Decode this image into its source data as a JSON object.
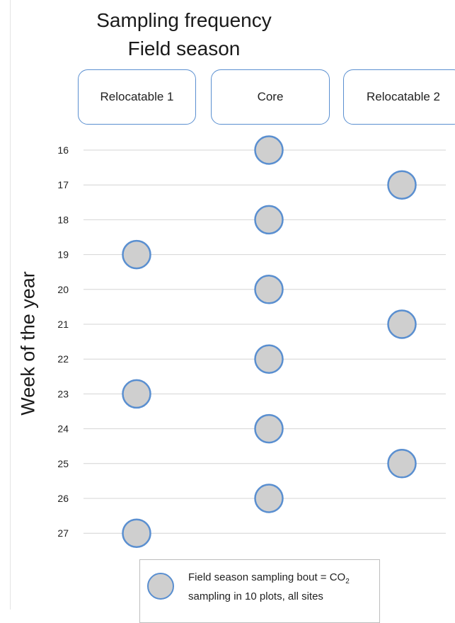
{
  "title_line1": "Sampling frequency",
  "title_line2": "Field season",
  "chart_data": {
    "type": "scatter",
    "categories": [
      "Relocatable 1",
      "Core",
      "Relocatable 2"
    ],
    "ylabel": "Week of the year",
    "y_ticks": [
      16,
      17,
      18,
      19,
      20,
      21,
      22,
      23,
      24,
      25,
      26,
      27
    ],
    "ylim": [
      16,
      27
    ],
    "y_reversed": true,
    "grid": true,
    "series": [
      {
        "points": [
          {
            "x": "Core",
            "y": 16
          },
          {
            "x": "Relocatable 2",
            "y": 17
          },
          {
            "x": "Core",
            "y": 18
          },
          {
            "x": "Relocatable 1",
            "y": 19
          },
          {
            "x": "Core",
            "y": 20
          },
          {
            "x": "Relocatable 2",
            "y": 21
          },
          {
            "x": "Core",
            "y": 22
          },
          {
            "x": "Relocatable 1",
            "y": 23
          },
          {
            "x": "Core",
            "y": 24
          },
          {
            "x": "Relocatable 2",
            "y": 25
          },
          {
            "x": "Core",
            "y": 26
          },
          {
            "x": "Relocatable 1",
            "y": 27
          }
        ]
      }
    ],
    "legend": {
      "text_before_sub": "Field season sampling bout = CO",
      "subscript": "2",
      "text_line2": "sampling in 10 plots, all sites",
      "position": "bottom"
    },
    "colors": {
      "marker_fill": "#cfcfcf",
      "marker_stroke": "#5a8fd0",
      "grid": "#d4d4d4",
      "header_border": "#5a8fd0"
    }
  }
}
